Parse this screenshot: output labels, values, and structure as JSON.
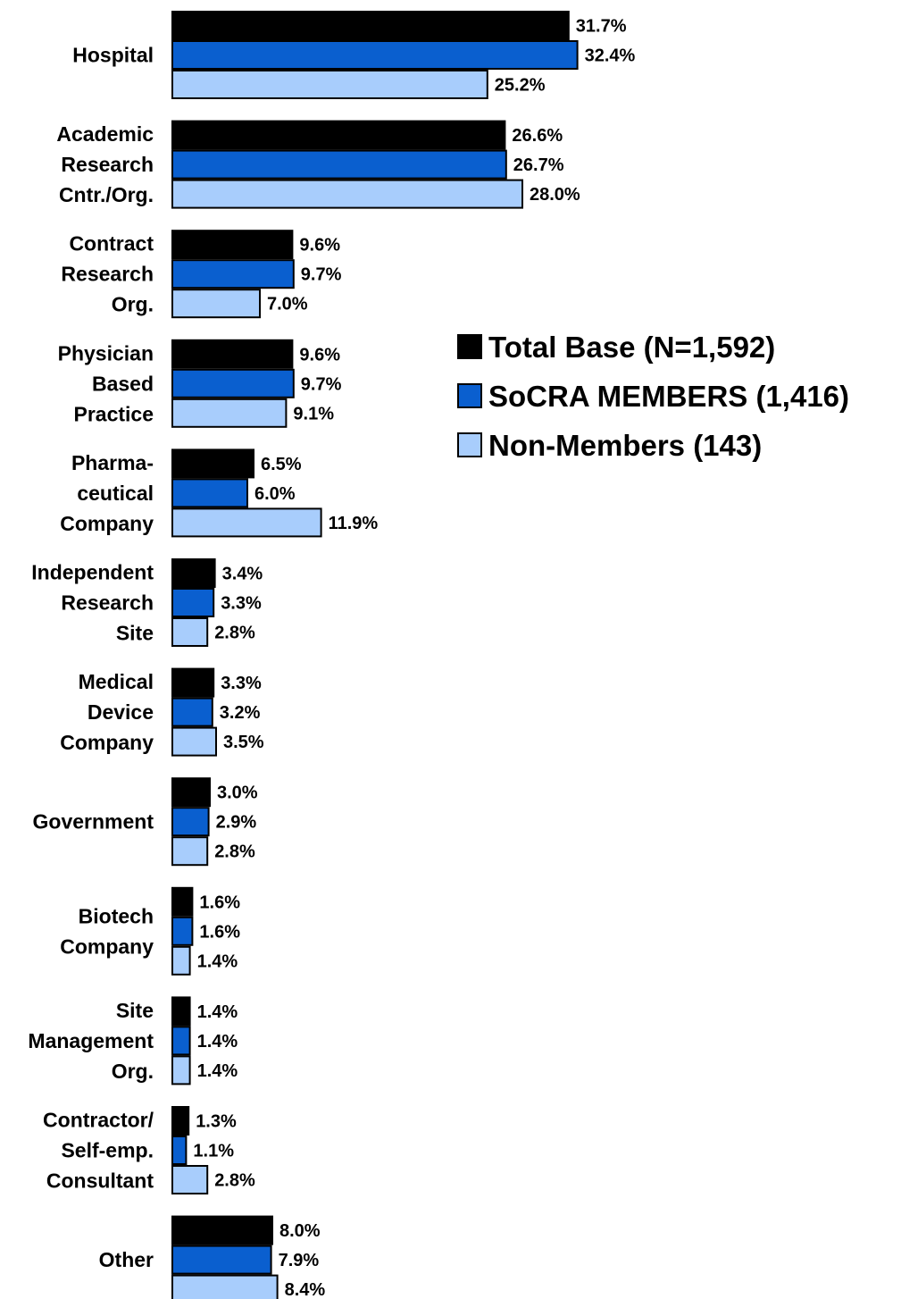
{
  "chart_data": {
    "type": "bar",
    "orientation": "horizontal",
    "categories": [
      [
        "Hospital"
      ],
      [
        "Academic",
        "Research",
        "Cntr./Org."
      ],
      [
        "Contract",
        "Research",
        "Org."
      ],
      [
        "Physician",
        "Based",
        "Practice"
      ],
      [
        "Pharma-",
        "ceutical",
        "Company"
      ],
      [
        "Independent",
        "Research",
        "Site"
      ],
      [
        "Medical",
        "Device",
        "Company"
      ],
      [
        "Government"
      ],
      [
        "Biotech",
        "Company"
      ],
      [
        "Site",
        "Management",
        "Org."
      ],
      [
        "Contractor/",
        "Self-emp.",
        "Consultant"
      ],
      [
        "Other"
      ]
    ],
    "series": [
      {
        "name": "Total Base (N=1,592)",
        "color": "#000000",
        "values": [
          31.7,
          26.6,
          9.6,
          9.6,
          6.5,
          3.4,
          3.3,
          3.0,
          1.6,
          1.4,
          1.3,
          8.0
        ],
        "labels": [
          "31.7%",
          "26.6%",
          "9.6%",
          "9.6%",
          "6.5%",
          "3.4%",
          "3.3%",
          "3.0%",
          "1.6%",
          "1.4%",
          "1.3%",
          "8.0%"
        ]
      },
      {
        "name": "SoCRA MEMBERS (1,416)",
        "color": "#0a5fcf",
        "values": [
          32.4,
          26.7,
          9.7,
          9.7,
          6.0,
          3.3,
          3.2,
          2.9,
          1.6,
          1.4,
          1.1,
          7.9
        ],
        "labels": [
          "32.4%",
          "26.7%",
          "9.7%",
          "9.7%",
          "6.0%",
          "3.3%",
          "3.2%",
          "2.9%",
          "1.6%",
          "1.4%",
          "1.1%",
          "7.9%"
        ]
      },
      {
        "name": "Non-Members (143)",
        "color": "#a8cdfc",
        "values": [
          25.2,
          28.0,
          7.0,
          9.1,
          11.9,
          2.8,
          3.5,
          2.8,
          1.4,
          1.4,
          2.8,
          8.4
        ],
        "labels": [
          "25.2%",
          "28.0%",
          "7.0%",
          "9.1%",
          "11.9%",
          "2.8%",
          "3.5%",
          "2.8%",
          "1.4%",
          "1.4%",
          "2.8%",
          "8.4%"
        ]
      }
    ],
    "grid": false,
    "legend_position": "right"
  }
}
